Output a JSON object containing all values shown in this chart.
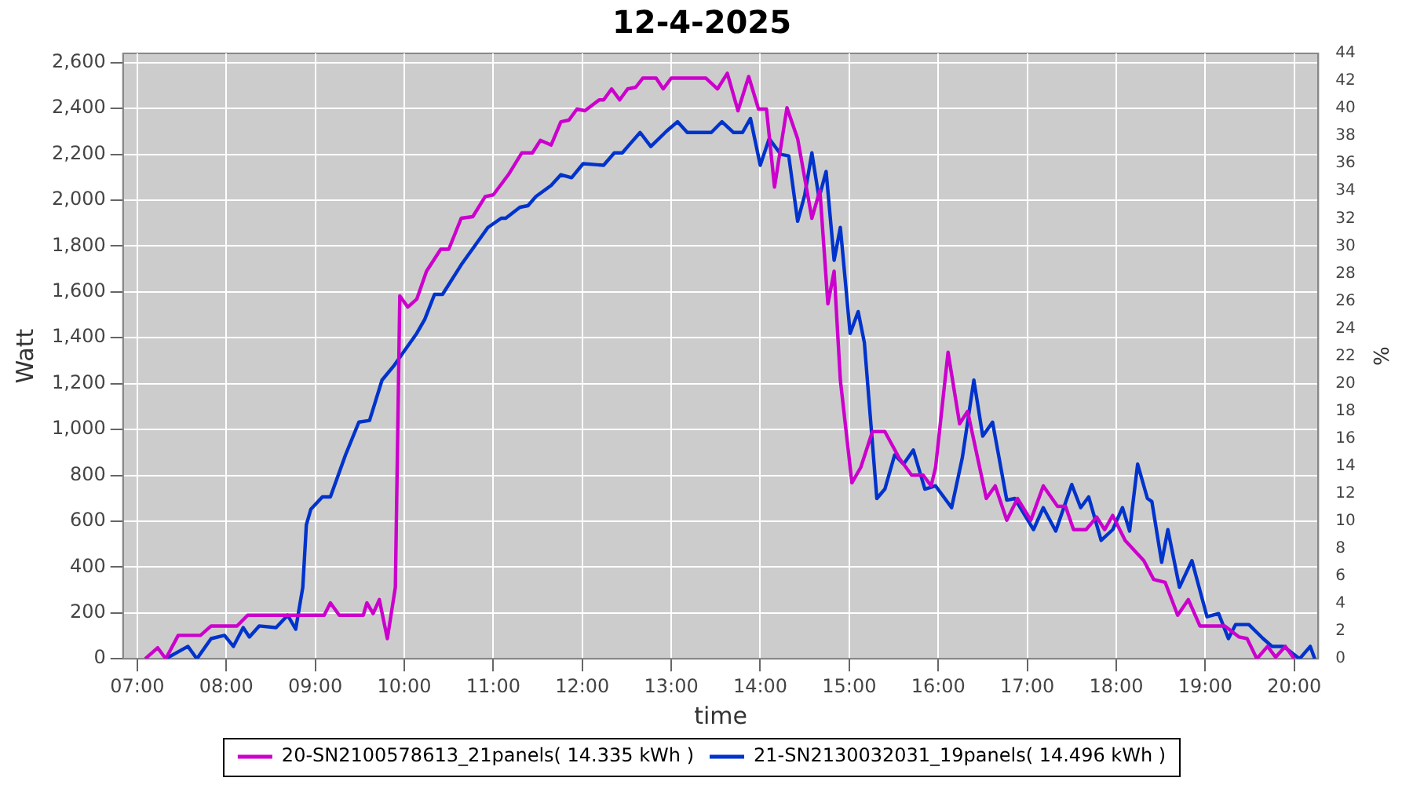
{
  "chart_data": {
    "type": "line",
    "title": "12-4-2025",
    "xlabel": "time",
    "ylabel": "Watt",
    "y2label": "%",
    "xlim": [
      6.84,
      20.27
    ],
    "xticks": [
      {
        "value": 7,
        "label": "07:00"
      },
      {
        "value": 8,
        "label": "08:00"
      },
      {
        "value": 9,
        "label": "09:00"
      },
      {
        "value": 10,
        "label": "10:00"
      },
      {
        "value": 11,
        "label": "11:00"
      },
      {
        "value": 12,
        "label": "12:00"
      },
      {
        "value": 13,
        "label": "13:00"
      },
      {
        "value": 14,
        "label": "14:00"
      },
      {
        "value": 15,
        "label": "15:00"
      },
      {
        "value": 16,
        "label": "16:00"
      },
      {
        "value": 17,
        "label": "17:00"
      },
      {
        "value": 18,
        "label": "18:00"
      },
      {
        "value": 19,
        "label": "19:00"
      },
      {
        "value": 20,
        "label": "20:00"
      }
    ],
    "ylim": [
      0,
      2640
    ],
    "yticks": [
      0,
      200,
      400,
      600,
      800,
      {
        "value": 1000,
        "label": "1,000"
      },
      {
        "value": 1200,
        "label": "1,200"
      },
      {
        "value": 1400,
        "label": "1,400"
      },
      {
        "value": 1600,
        "label": "1,600"
      },
      {
        "value": 1800,
        "label": "1,800"
      },
      {
        "value": 2000,
        "label": "2,000"
      },
      {
        "value": 2200,
        "label": "2,200"
      },
      {
        "value": 2400,
        "label": "2,400"
      },
      {
        "value": 2600,
        "label": "2,600"
      }
    ],
    "y2lim": [
      0,
      44
    ],
    "y2ticks": [
      0,
      2,
      4,
      6,
      8,
      10,
      12,
      14,
      16,
      18,
      20,
      22,
      24,
      26,
      28,
      30,
      32,
      34,
      36,
      38,
      40,
      42,
      44
    ],
    "grid": true,
    "legend": "bottom",
    "series": [
      {
        "name": "20-SN2100578613_21panels( 14.335 kWh )",
        "color": "#cc00cc",
        "x": [
          7.09,
          7.23,
          7.32,
          7.46,
          7.71,
          7.83,
          8.12,
          8.24,
          9.1,
          9.17,
          9.27,
          9.54,
          9.58,
          9.65,
          9.72,
          9.81,
          9.9,
          9.95,
          10.04,
          10.14,
          10.25,
          10.41,
          10.5,
          10.64,
          10.77,
          10.91,
          11.0,
          11.17,
          11.32,
          11.44,
          11.53,
          11.65,
          11.76,
          11.85,
          11.94,
          12.03,
          12.19,
          12.24,
          12.33,
          12.42,
          12.51,
          12.6,
          12.68,
          12.83,
          12.91,
          13.0,
          13.39,
          13.52,
          13.63,
          13.75,
          13.87,
          13.98,
          14.07,
          14.16,
          14.3,
          14.42,
          14.58,
          14.67,
          14.76,
          14.83,
          14.9,
          15.03,
          15.13,
          15.26,
          15.4,
          15.56,
          15.7,
          15.83,
          15.92,
          15.97,
          16.11,
          16.24,
          16.33,
          16.54,
          16.64,
          16.77,
          16.89,
          17.04,
          17.18,
          17.34,
          17.43,
          17.52,
          17.66,
          17.78,
          17.87,
          17.96,
          18.1,
          18.31,
          18.42,
          18.55,
          18.69,
          18.81,
          18.94,
          19.22,
          19.38,
          19.47,
          19.58,
          19.7,
          19.79,
          19.9,
          20.0
        ],
        "values": [
          0,
          48,
          0,
          102,
          102,
          143,
          143,
          190,
          190,
          244,
          190,
          190,
          244,
          197,
          258,
          88,
          312,
          1582,
          1534,
          1568,
          1690,
          1786,
          1786,
          1921,
          1928,
          2016,
          2023,
          2111,
          2206,
          2206,
          2261,
          2240,
          2342,
          2349,
          2397,
          2390,
          2437,
          2437,
          2485,
          2437,
          2485,
          2492,
          2532,
          2532,
          2485,
          2532,
          2532,
          2485,
          2553,
          2390,
          2539,
          2397,
          2397,
          2057,
          2403,
          2268,
          1921,
          2043,
          1548,
          1690,
          1215,
          767,
          835,
          991,
          991,
          876,
          801,
          801,
          754,
          835,
          1337,
          1025,
          1079,
          699,
          754,
          604,
          699,
          604,
          754,
          665,
          665,
          563,
          563,
          618,
          563,
          625,
          516,
          428,
          346,
          333,
          190,
          258,
          143,
          143,
          95,
          88,
          0,
          54,
          7,
          54,
          0
        ]
      },
      {
        "name": "21-SN2130032031_19panels( 14.496 kWh )",
        "color": "#0033cc",
        "x": [
          7.32,
          7.57,
          7.67,
          7.83,
          7.98,
          8.08,
          8.19,
          8.26,
          8.37,
          8.56,
          8.69,
          8.78,
          8.86,
          8.9,
          8.95,
          9.08,
          9.17,
          9.34,
          9.49,
          9.61,
          9.75,
          9.88,
          10.14,
          10.23,
          10.34,
          10.43,
          10.64,
          10.94,
          11.09,
          11.14,
          11.3,
          11.39,
          11.48,
          11.65,
          11.76,
          11.88,
          12.01,
          12.24,
          12.36,
          12.45,
          12.54,
          12.65,
          12.77,
          12.95,
          13.07,
          13.18,
          13.45,
          13.57,
          13.7,
          13.8,
          13.89,
          14.0,
          14.1,
          14.23,
          14.32,
          14.42,
          14.5,
          14.58,
          14.66,
          14.74,
          14.83,
          14.9,
          15.01,
          15.1,
          15.17,
          15.31,
          15.4,
          15.51,
          15.61,
          15.72,
          15.85,
          15.97,
          16.15,
          16.27,
          16.4,
          16.5,
          16.61,
          16.77,
          16.86,
          17.07,
          17.18,
          17.32,
          17.5,
          17.6,
          17.69,
          17.83,
          17.96,
          18.07,
          18.15,
          18.24,
          18.35,
          18.4,
          18.51,
          18.58,
          18.71,
          18.85,
          19.02,
          19.15,
          19.26,
          19.34,
          19.49,
          19.65,
          19.75,
          19.88,
          20.06,
          20.18,
          20.23
        ],
        "values": [
          0,
          54,
          0,
          88,
          102,
          54,
          136,
          95,
          143,
          136,
          190,
          129,
          312,
          584,
          652,
          706,
          706,
          889,
          1032,
          1039,
          1215,
          1276,
          1419,
          1480,
          1589,
          1589,
          1718,
          1881,
          1921,
          1921,
          1969,
          1976,
          2016,
          2064,
          2111,
          2098,
          2159,
          2152,
          2206,
          2206,
          2247,
          2295,
          2234,
          2302,
          2342,
          2295,
          2295,
          2342,
          2295,
          2295,
          2356,
          2152,
          2268,
          2200,
          2193,
          1908,
          2023,
          2206,
          2010,
          2125,
          1738,
          1881,
          1419,
          1514,
          1378,
          699,
          740,
          889,
          849,
          910,
          740,
          754,
          659,
          876,
          1215,
          971,
          1032,
          692,
          699,
          563,
          659,
          557,
          760,
          659,
          706,
          516,
          563,
          659,
          557,
          849,
          699,
          686,
          421,
          563,
          312,
          428,
          183,
          197,
          88,
          149,
          149,
          88,
          54,
          54,
          0,
          54,
          0
        ]
      }
    ]
  }
}
